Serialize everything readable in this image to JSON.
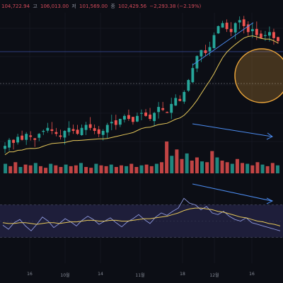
{
  "ohlc_header": {
    "symbol_prefix": "",
    "open_label": "",
    "open": "104,722.94",
    "high_label": "고",
    "high": "106,013.00",
    "low_label": "저",
    "low": "101,569.00",
    "close_label": "종",
    "close": "102,429.56",
    "change": "−2,293.38 (−2.19%)"
  },
  "colors": {
    "background": "#0c0e15",
    "up": "#26a69a",
    "down": "#ef5350",
    "ma_line": "#e6c85a",
    "rsi_line": "#8f9ae0",
    "rsi_band": "#1e1e3a",
    "annotation": "#4c8cf0",
    "highlight_circle": "#e8a33a"
  },
  "chart_data": [
    {
      "type": "candlestick",
      "title": "",
      "x_ticks": [
        "16",
        "10월",
        "14",
        "11월",
        "18",
        "12월",
        "16"
      ],
      "candles_close_trend": [
        58,
        60,
        59,
        61,
        60,
        62,
        61,
        60,
        62,
        63,
        64,
        63,
        62,
        61,
        63,
        64,
        63,
        62,
        64,
        65,
        64,
        63,
        62,
        63,
        65,
        66,
        65,
        67,
        68,
        67,
        66,
        68,
        69,
        68,
        67,
        69,
        71,
        70,
        69,
        72,
        74,
        73,
        76,
        80,
        84,
        88,
        90,
        89,
        91,
        95,
        98,
        99,
        97,
        96,
        99,
        100,
        98,
        96,
        97,
        95,
        94,
        95,
        96,
        94,
        93
      ],
      "moving_average_label": "",
      "annotations": [
        "trendline-up",
        "trendline-down",
        "highlight-circle"
      ]
    },
    {
      "type": "bar",
      "title": "",
      "series": [
        {
          "values": [
            12,
            9,
            14,
            8,
            11,
            10,
            13,
            9,
            7,
            12,
            10,
            8,
            11,
            9,
            10,
            13,
            8,
            7,
            12,
            10,
            9,
            11,
            8,
            10,
            9,
            12,
            8,
            10,
            11,
            9,
            12,
            14,
            40,
            22,
            30,
            18,
            25,
            16,
            20,
            15,
            14,
            28,
            20,
            16,
            14,
            12,
            18,
            13,
            12,
            10,
            14,
            11,
            9,
            13,
            10
          ]
        }
      ]
    },
    {
      "type": "line",
      "title": "",
      "ylim": [
        0,
        100
      ],
      "bands": [
        30,
        70
      ],
      "series": [
        {
          "values": [
            45,
            40,
            48,
            52,
            44,
            38,
            46,
            55,
            50,
            42,
            47,
            53,
            49,
            44,
            51,
            56,
            52,
            46,
            50,
            54,
            48,
            43,
            49,
            53,
            58,
            52,
            47,
            55,
            60,
            57,
            62,
            66,
            78,
            72,
            70,
            64,
            68,
            60,
            58,
            62,
            56,
            52,
            50,
            54,
            48,
            46,
            44,
            42,
            40,
            38
          ]
        },
        {
          "values": [
            48,
            47,
            47,
            48,
            48,
            47,
            46,
            47,
            48,
            48,
            47,
            48,
            49,
            49,
            50,
            51,
            51,
            50,
            50,
            51,
            51,
            50,
            50,
            51,
            52,
            53,
            53,
            54,
            55,
            56,
            58,
            60,
            63,
            65,
            66,
            66,
            65,
            64,
            62,
            61,
            59,
            57,
            55,
            54,
            52,
            50,
            49,
            47,
            46,
            44
          ]
        }
      ]
    }
  ]
}
